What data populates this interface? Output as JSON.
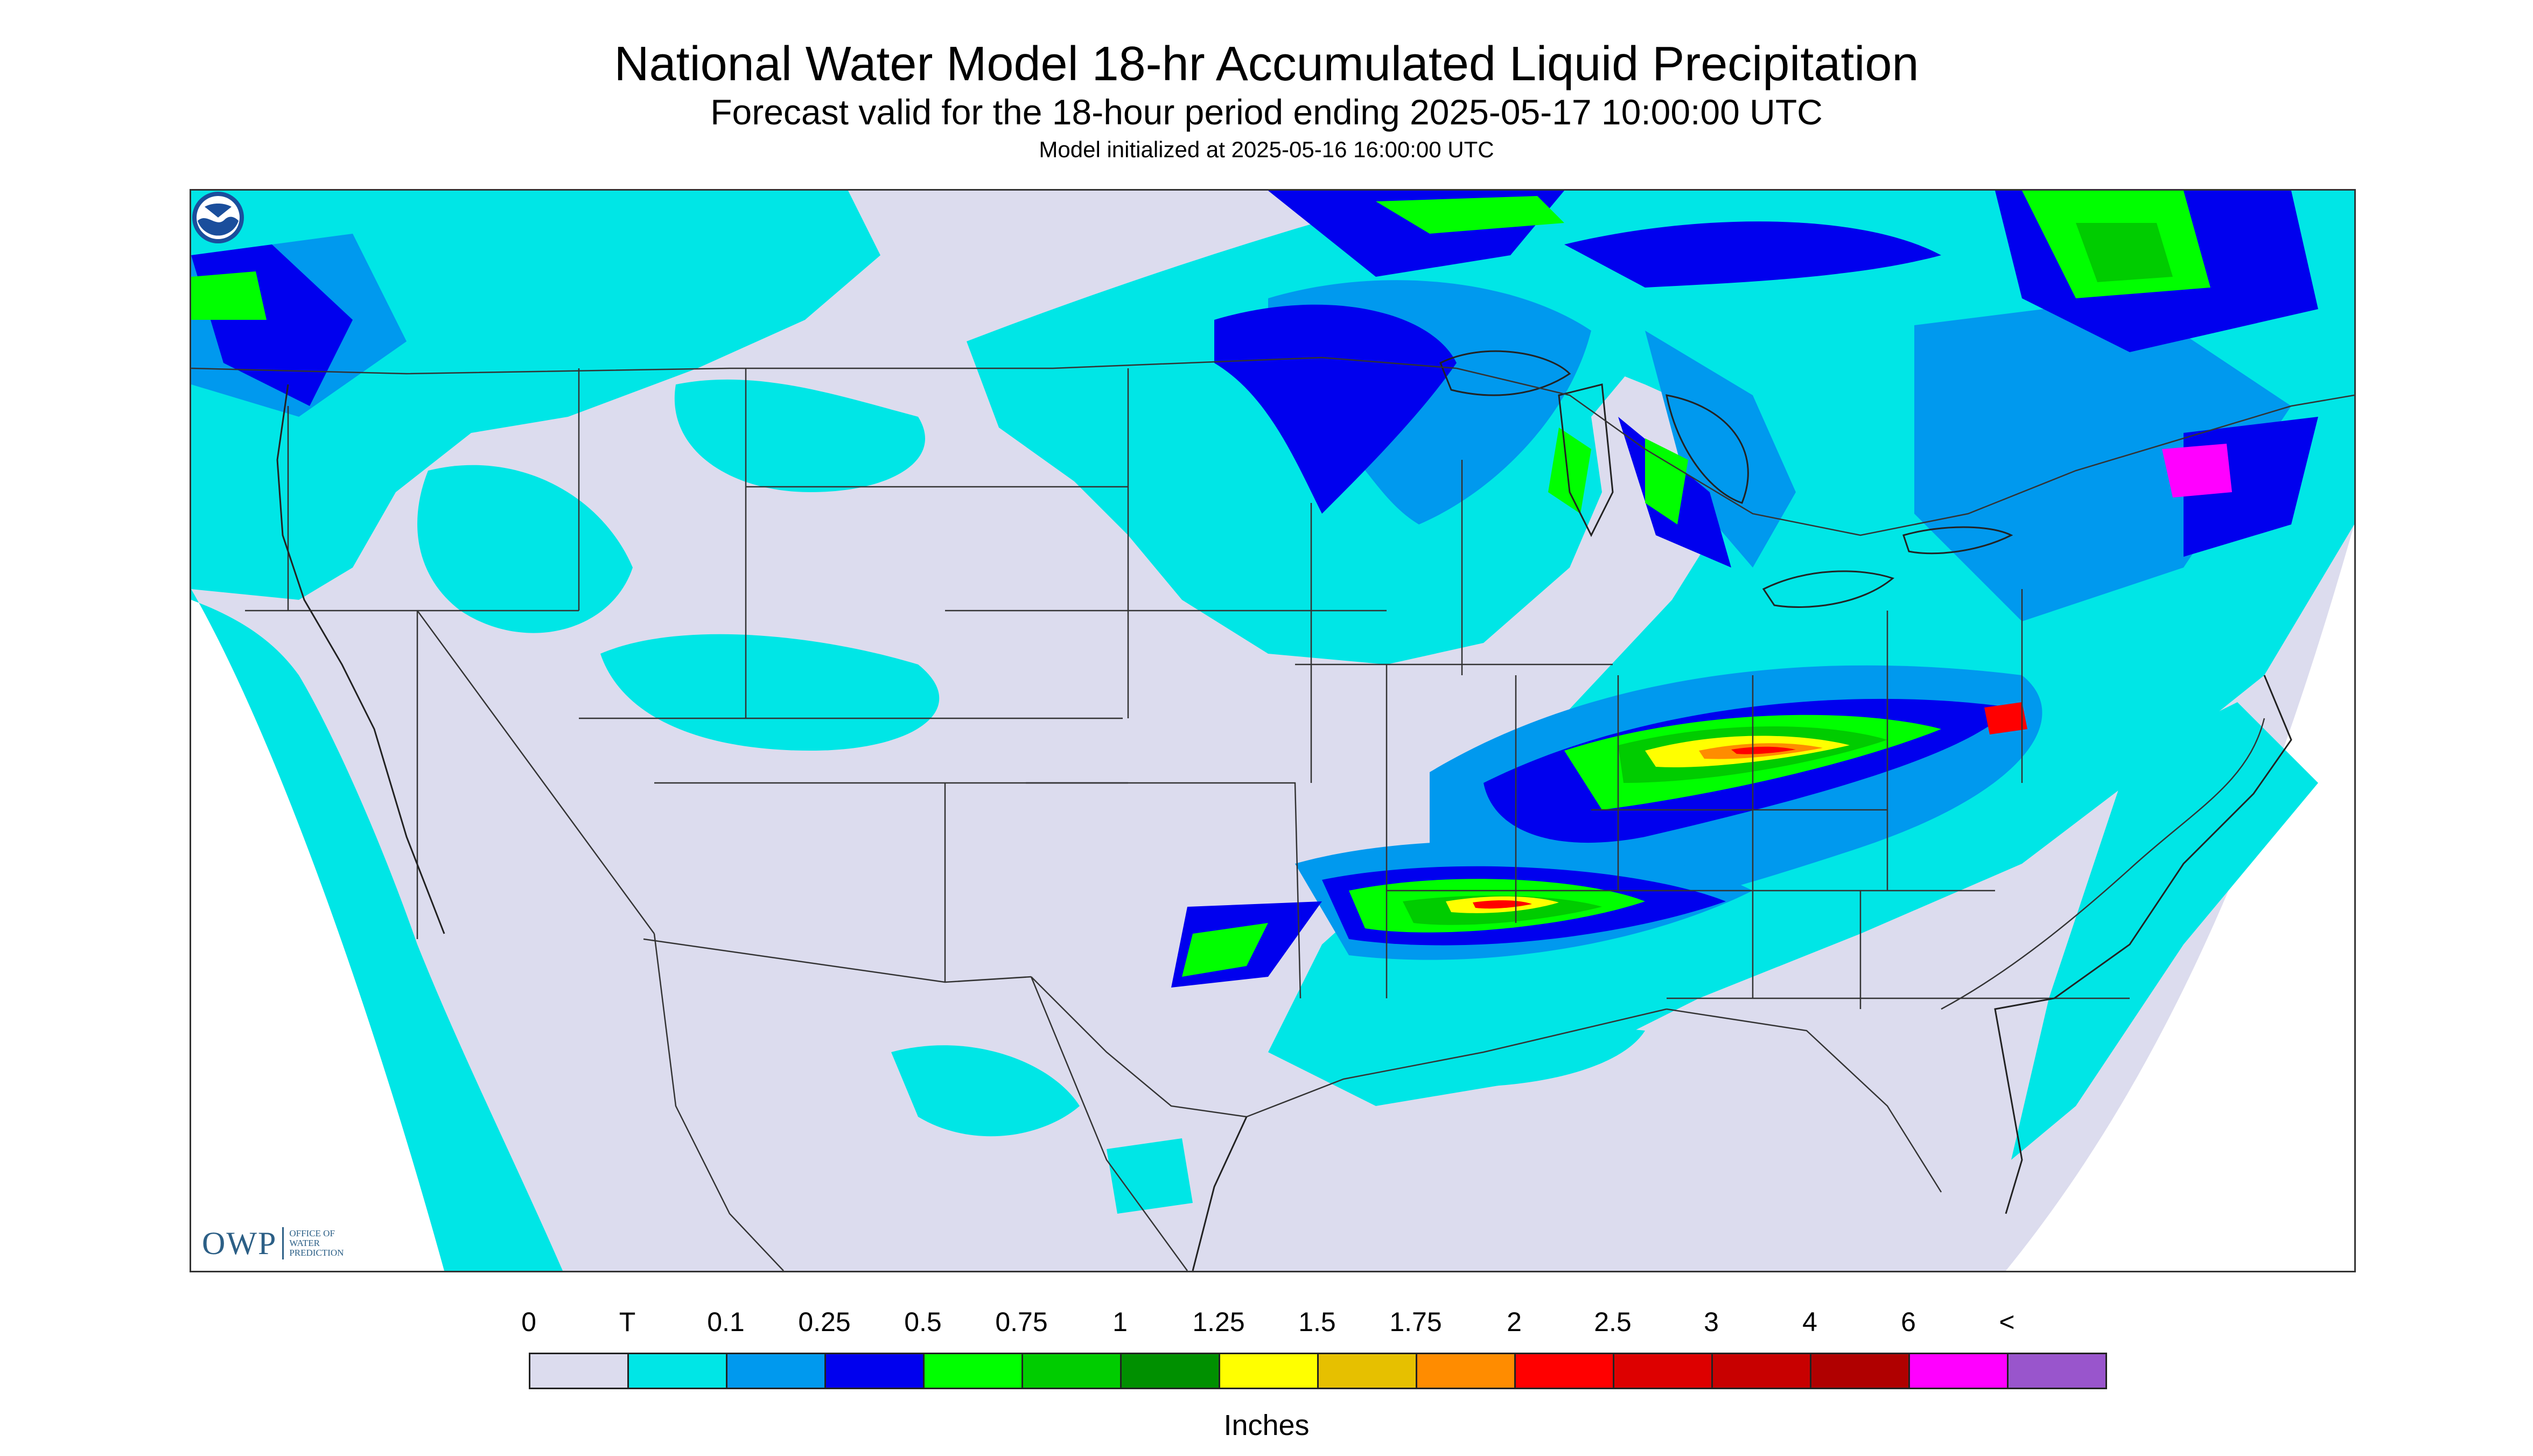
{
  "header": {
    "title": "National Water Model 18-hr Accumulated Liquid Precipitation",
    "subtitle": "Forecast valid for the 18-hour period ending 2025-05-17 10:00:00 UTC",
    "init": "Model initialized at 2025-05-16 16:00:00 UTC"
  },
  "logos": {
    "owp_mark": "OWP",
    "owp_line1": "OFFICE OF",
    "owp_line2": "WATER",
    "owp_line3": "PREDICTION",
    "noaa": "NOAA"
  },
  "legend": {
    "labels": [
      "0",
      "T",
      "0.1",
      "0.25",
      "0.5",
      "0.75",
      "1",
      "1.25",
      "1.5",
      "1.75",
      "2",
      "2.5",
      "3",
      "4",
      "6",
      "<"
    ],
    "colors": [
      "#dcdcee",
      "#00e6e6",
      "#0099ee",
      "#0000ee",
      "#00ff00",
      "#00cc00",
      "#009000",
      "#ffff00",
      "#e6c000",
      "#ff8c00",
      "#ff0000",
      "#dd0000",
      "#c80000",
      "#b00000",
      "#ff00ff",
      "#9955cc"
    ],
    "units": "Inches"
  }
}
